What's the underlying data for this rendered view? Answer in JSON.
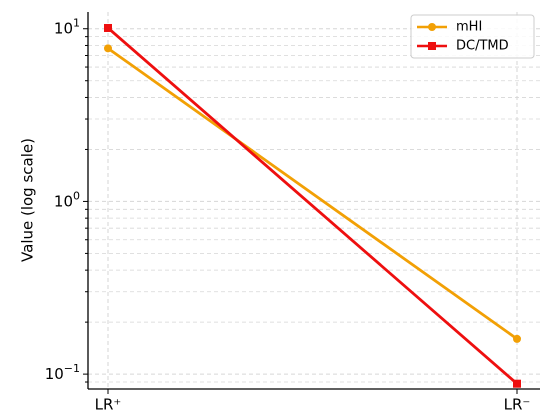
{
  "chart_data": {
    "type": "line",
    "title": "",
    "xlabel": "",
    "ylabel": "Value (log scale)",
    "yscale": "log",
    "ylim": [
      0.082,
      12.5
    ],
    "grid": true,
    "legend_position": "top-right",
    "categories": [
      "LR⁺",
      "LR⁻"
    ],
    "y_ticks": [
      {
        "value": 10,
        "base": "10",
        "exp": "1"
      },
      {
        "value": 1,
        "base": "10",
        "exp": "0"
      },
      {
        "value": 0.1,
        "base": "10",
        "exp": "−1"
      }
    ],
    "series": [
      {
        "name": "mHI",
        "color": "#f2a005",
        "marker": "circle",
        "values": [
          7.7,
          0.16
        ]
      },
      {
        "name": "DC/TMD",
        "color": "#ee0f0f",
        "marker": "square",
        "values": [
          10.1,
          0.088
        ]
      }
    ]
  }
}
